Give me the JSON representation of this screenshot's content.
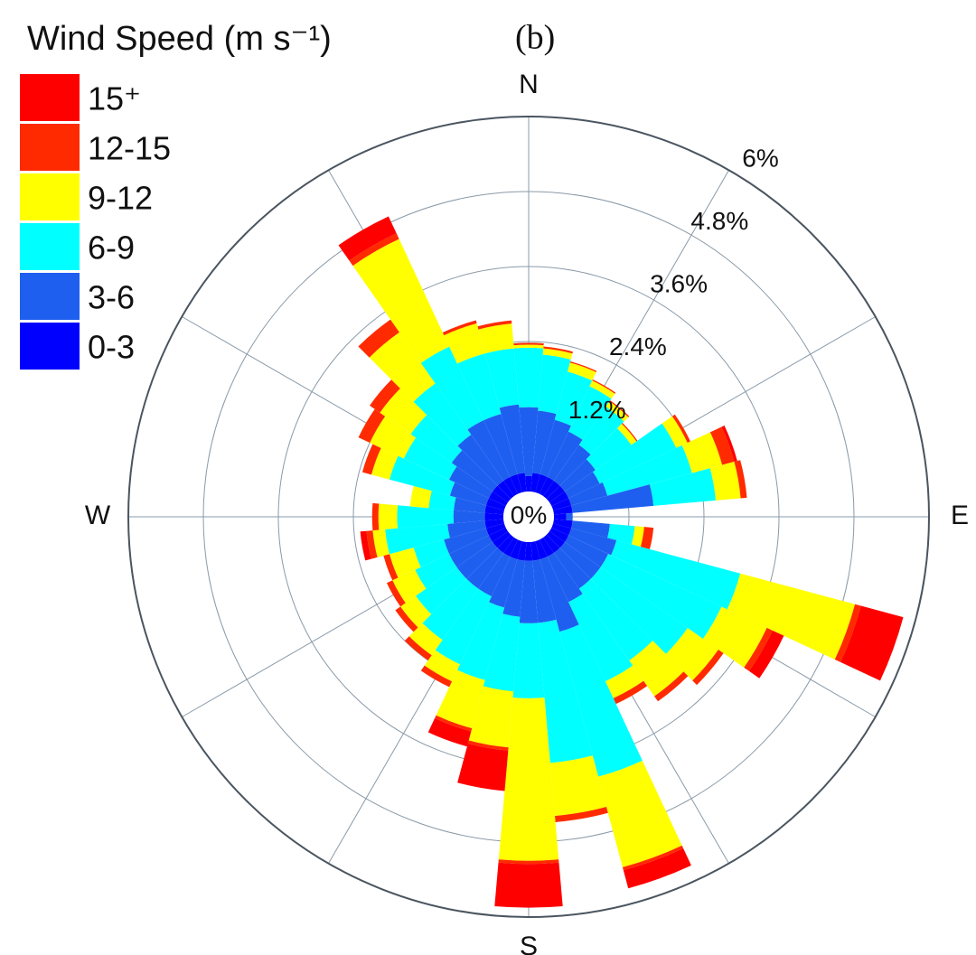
{
  "chart_data": {
    "type": "windrose",
    "title": "Wind Speed (m s⁻¹)",
    "panel_label": "(b)",
    "categories": [
      "N",
      null,
      null,
      null,
      null,
      null,
      null,
      null,
      null,
      "E",
      null,
      null,
      null,
      null,
      null,
      null,
      null,
      null,
      "S",
      null,
      null,
      null,
      null,
      null,
      null,
      null,
      null,
      "W",
      null,
      null,
      null,
      null,
      null,
      null,
      null,
      null
    ],
    "rlim": [
      0,
      6
    ],
    "rticks": [
      {
        "value": 0,
        "label": "0%"
      },
      {
        "value": 1.2,
        "label": "1.2%"
      },
      {
        "value": 2.4,
        "label": "2.4%"
      },
      {
        "value": 3.6,
        "label": "3.6%"
      },
      {
        "value": 4.8,
        "label": "4.8%"
      },
      {
        "value": 6,
        "label": "6%"
      }
    ],
    "grid": true,
    "legend": "upper left",
    "series": [
      {
        "name": "0-3",
        "color": "#0000ff",
        "values": [
          0.25,
          0.3,
          0.3,
          0.3,
          0.3,
          0.3,
          0.3,
          0.3,
          0.3,
          0.2,
          0.3,
          0.3,
          0.3,
          0.3,
          0.3,
          0.3,
          0.3,
          0.3,
          0.3,
          0.3,
          0.3,
          0.3,
          0.3,
          0.3,
          0.3,
          0.3,
          0.3,
          0.3,
          0.3,
          0.3,
          0.3,
          0.3,
          0.3,
          0.3,
          0.3,
          0.3
        ]
      },
      {
        "name": "3-6",
        "color": "#1f5ff0",
        "values": [
          1.1,
          1.0,
          0.9,
          0.8,
          0.7,
          0.6,
          0.55,
          0.6,
          1.3,
          0.1,
          0.6,
          0.75,
          0.7,
          0.7,
          0.7,
          0.8,
          1.2,
          1.0,
          1.0,
          0.9,
          0.8,
          0.7,
          0.7,
          0.7,
          0.7,
          0.7,
          0.6,
          0.5,
          0.5,
          0.6,
          0.7,
          0.8,
          0.9,
          1.0,
          1.0,
          1.1
        ]
      },
      {
        "name": "6-9",
        "color": "#00ffff",
        "values": [
          0.95,
          0.9,
          0.8,
          0.8,
          0.75,
          0.7,
          1.35,
          1.4,
          1.0,
          0,
          0.4,
          2.05,
          2.0,
          1.7,
          1.4,
          1.4,
          2.4,
          2.25,
          1.2,
          1.2,
          1.2,
          1.2,
          1.0,
          0.8,
          0.6,
          0.5,
          1.0,
          0.9,
          0.4,
          1.0,
          0.8,
          0.8,
          1.0,
          1.3,
          1.0,
          0.9
        ]
      },
      {
        "name": "9-12",
        "color": "#ffff00",
        "values": [
          0.05,
          0.1,
          0.15,
          0.1,
          0.1,
          0.1,
          0.2,
          0.5,
          0.4,
          0,
          0.15,
          1.9,
          0.8,
          0.6,
          0.7,
          0.3,
          1.5,
          0.85,
          2.6,
          0.9,
          0.8,
          0.3,
          0.3,
          0.3,
          0.4,
          0.4,
          0.2,
          0.3,
          0.3,
          0.3,
          0.6,
          0.6,
          1.0,
          1.9,
          0.5,
          0.4
        ]
      },
      {
        "name": "12-15",
        "color": "#ff2a00",
        "values": [
          0.03,
          0.03,
          0.02,
          0.02,
          0.02,
          0.02,
          0.05,
          0.2,
          0.1,
          0,
          0.15,
          0.1,
          0.1,
          0.1,
          0.1,
          0.1,
          0.05,
          0.1,
          0.05,
          0.05,
          0.05,
          0.1,
          0.1,
          0.1,
          0.1,
          0.1,
          0.1,
          0.1,
          0,
          0.15,
          0.2,
          0.2,
          0.25,
          0.1,
          0.05,
          0.05
        ]
      },
      {
        "name": "15⁺",
        "color": "#ff0000",
        "values": [
          0,
          0,
          0,
          0,
          0,
          0,
          0,
          0.05,
          0,
          0,
          0,
          0.7,
          0.2,
          0,
          0,
          0,
          0.3,
          0,
          0.7,
          0.65,
          0.25,
          0,
          0,
          0,
          0,
          0,
          0.1,
          0,
          0,
          0,
          0,
          0,
          0,
          0.3,
          0,
          0
        ]
      }
    ]
  }
}
